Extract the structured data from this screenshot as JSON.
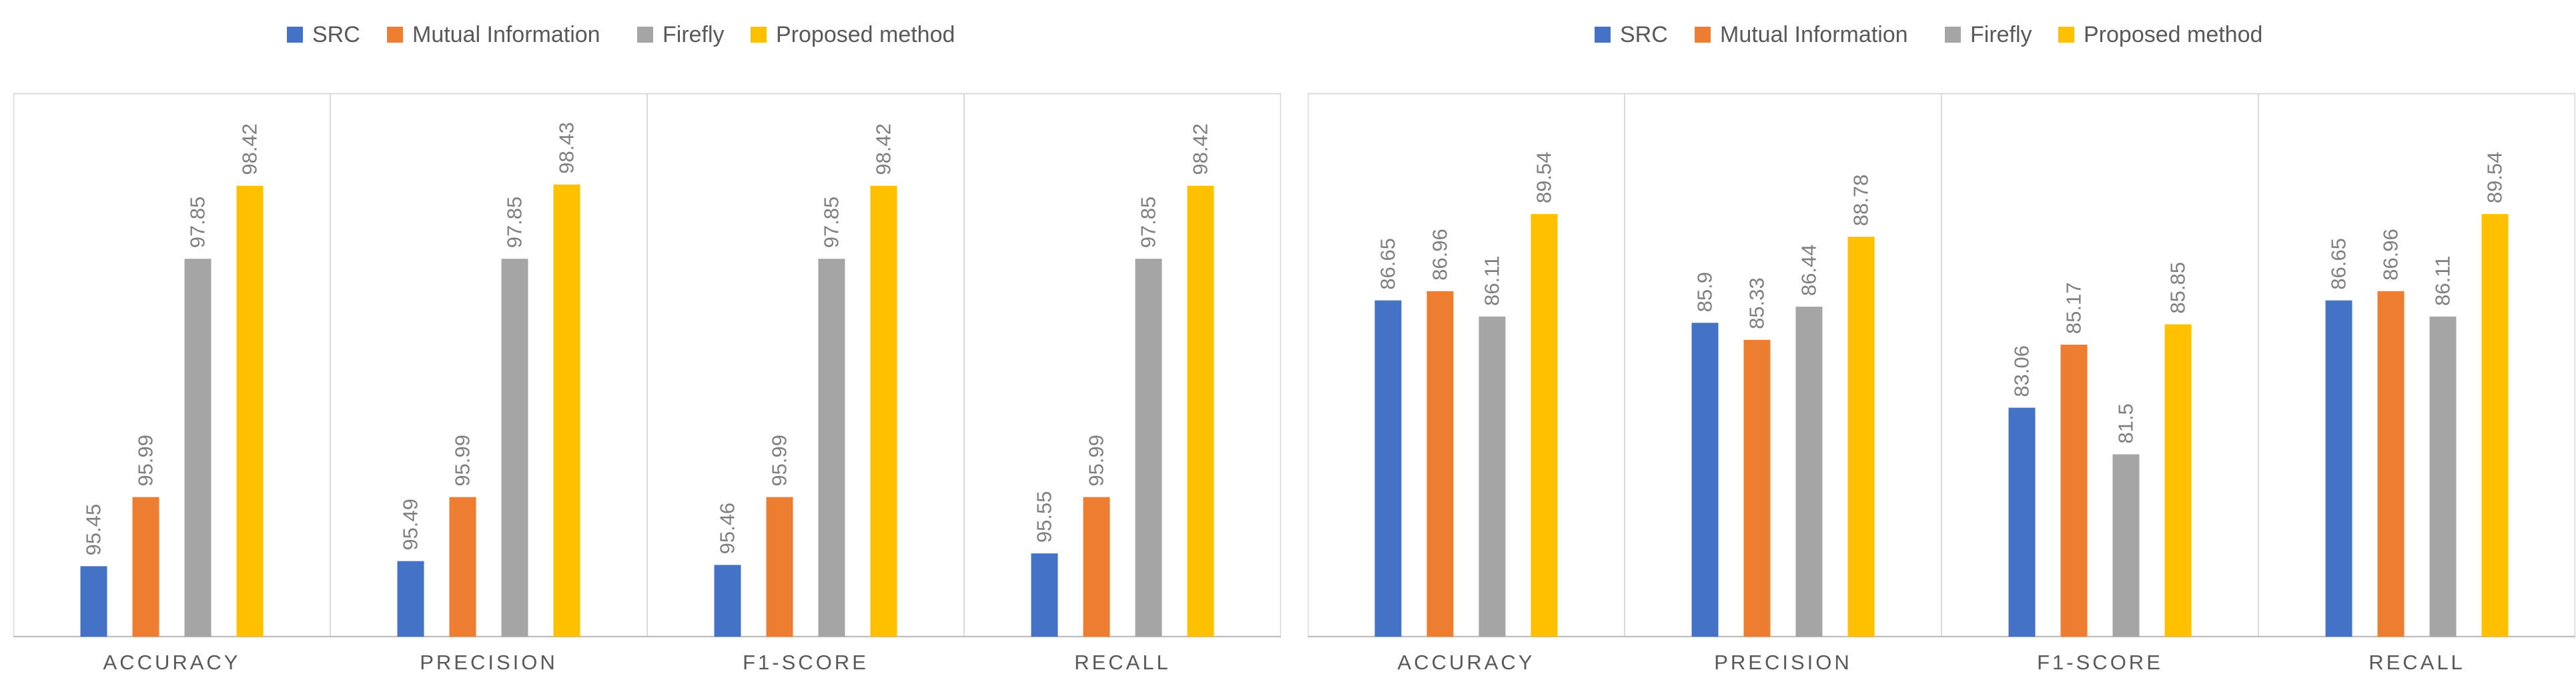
{
  "chart_data": [
    {
      "type": "bar",
      "categories": [
        "ACCURACY",
        "PRECISION",
        "F1-SCORE",
        "RECALL"
      ],
      "series": [
        {
          "name": "SRC",
          "values": [
            95.45,
            95.49,
            95.46,
            95.55
          ]
        },
        {
          "name": "Mutual Information",
          "values": [
            95.99,
            95.99,
            95.99,
            95.99
          ]
        },
        {
          "name": "Firefly",
          "values": [
            97.85,
            97.85,
            97.85,
            97.85
          ]
        },
        {
          "name": "Proposed method",
          "values": [
            98.42,
            98.43,
            98.42,
            98.42
          ]
        }
      ],
      "ylim": [
        94.9,
        99.1
      ],
      "grid": false,
      "legend": "top",
      "data_labels": true
    },
    {
      "type": "bar",
      "categories": [
        "ACCURACY",
        "PRECISION",
        "F1-SCORE",
        "RECALL"
      ],
      "series": [
        {
          "name": "SRC",
          "values": [
            86.65,
            85.9,
            83.06,
            86.65
          ]
        },
        {
          "name": "Mutual Information",
          "values": [
            86.96,
            85.33,
            85.17,
            86.96
          ]
        },
        {
          "name": "Firefly",
          "values": [
            86.11,
            86.44,
            81.5,
            86.11
          ]
        },
        {
          "name": "Proposed method",
          "values": [
            89.54,
            88.78,
            85.85,
            89.54
          ]
        }
      ],
      "ylim": [
        75.4,
        93.4
      ],
      "grid": false,
      "legend": "top",
      "data_labels": true
    }
  ],
  "colors": {
    "SRC": "#4472c4",
    "Mutual Information": "#ed7d31",
    "Firefly": "#a5a5a5",
    "Proposed method": "#ffc000"
  }
}
